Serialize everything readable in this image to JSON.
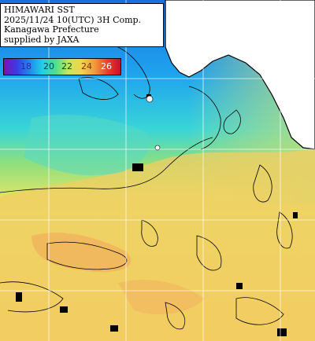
{
  "title_lines": [
    "HIMAWARI SST",
    "2025/11/24 10(UTC) 3H Comp.",
    "Kanagawa Prefecture",
    "supplied by JAXA"
  ],
  "legend": {
    "ticks": [
      "18",
      "20",
      "22",
      "24",
      "26"
    ],
    "tick_colors": [
      "#2b2b9b",
      "#063a6a",
      "#054a1a",
      "#6a3b00",
      "#ffffff"
    ],
    "gradient": [
      "#7a12b8",
      "#3a3be8",
      "#1d8cf0",
      "#22d0e6",
      "#4ee08a",
      "#c6e85a",
      "#f4d24a",
      "#f49a3a",
      "#e8402a",
      "#c8102a"
    ]
  },
  "colors": {
    "land": "#ffffff",
    "coast": "#000000",
    "grid": "#ffffff"
  }
}
